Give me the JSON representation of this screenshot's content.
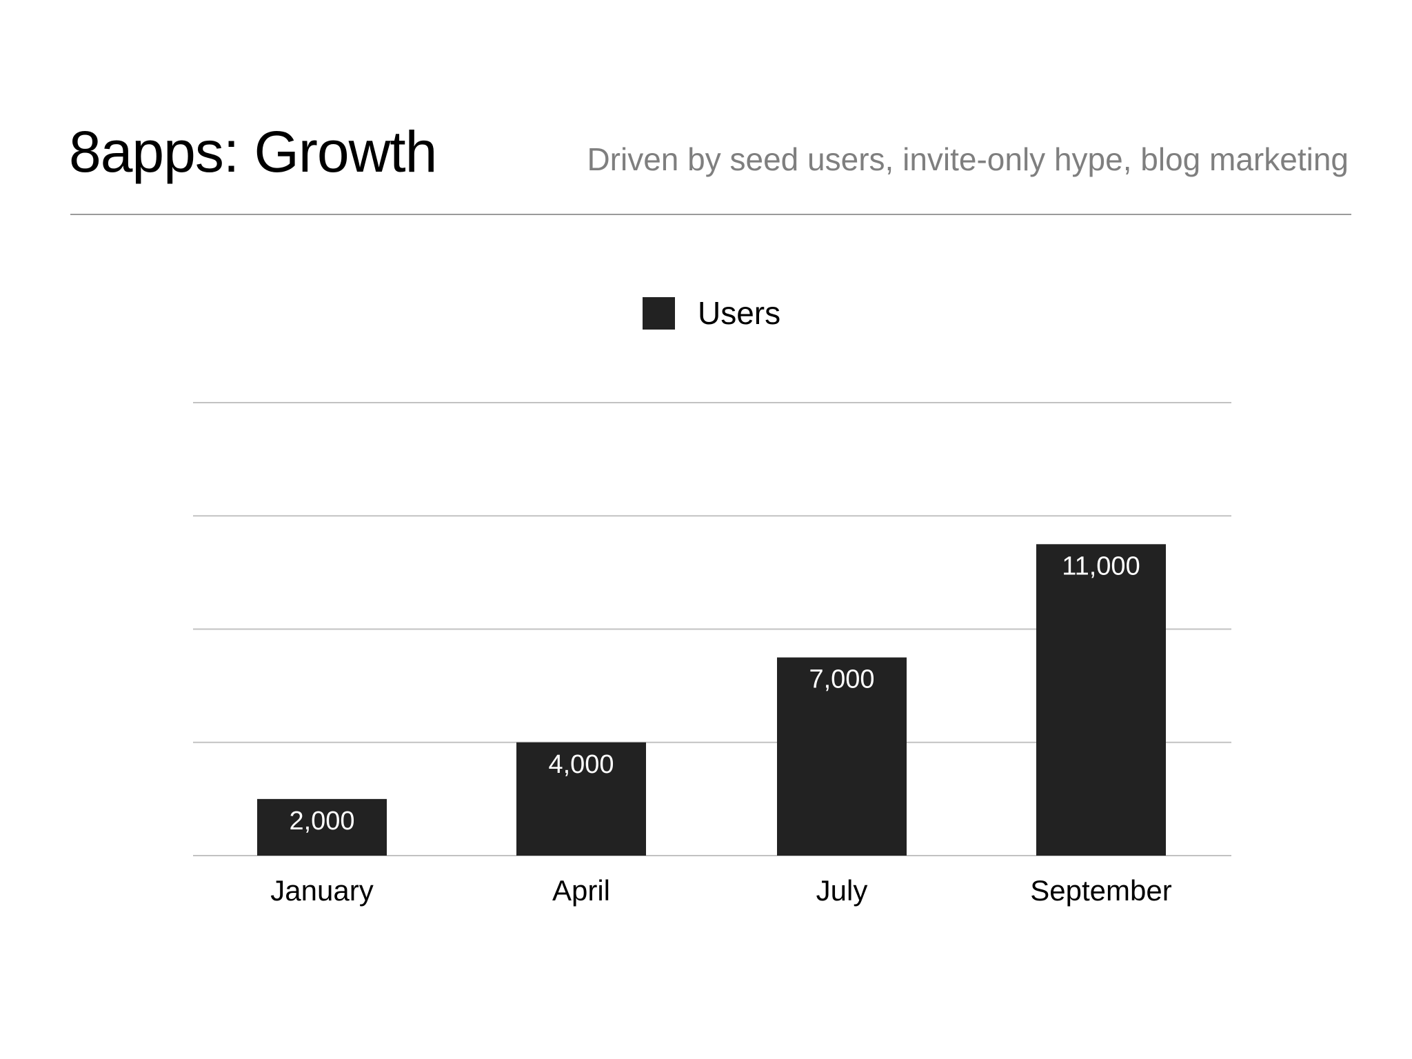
{
  "slide": {
    "title": "8apps: Growth",
    "subtitle": "Driven by seed users, invite-only hype, blog marketing"
  },
  "colors": {
    "bar": "#222222",
    "grid": "#c2c2c2",
    "label_on_bar": "#ffffff",
    "category_label": "#000000",
    "subtitle": "#7f7f7f"
  },
  "chart_data": {
    "type": "bar",
    "title": "",
    "xlabel": "",
    "ylabel": "",
    "categories": [
      "January",
      "April",
      "July",
      "September"
    ],
    "series": [
      {
        "name": "Users",
        "values": [
          2000,
          4000,
          7000,
          11000
        ],
        "value_labels": [
          "2,000",
          "4,000",
          "7,000",
          "11,000"
        ]
      }
    ],
    "ylim": [
      0,
      16000
    ],
    "y_gridlines": [
      0,
      4000,
      8000,
      12000,
      16000
    ],
    "y_tick_labels_shown": false,
    "grid": true,
    "legend": {
      "placement": "top-center",
      "entries": [
        "Users"
      ]
    }
  }
}
